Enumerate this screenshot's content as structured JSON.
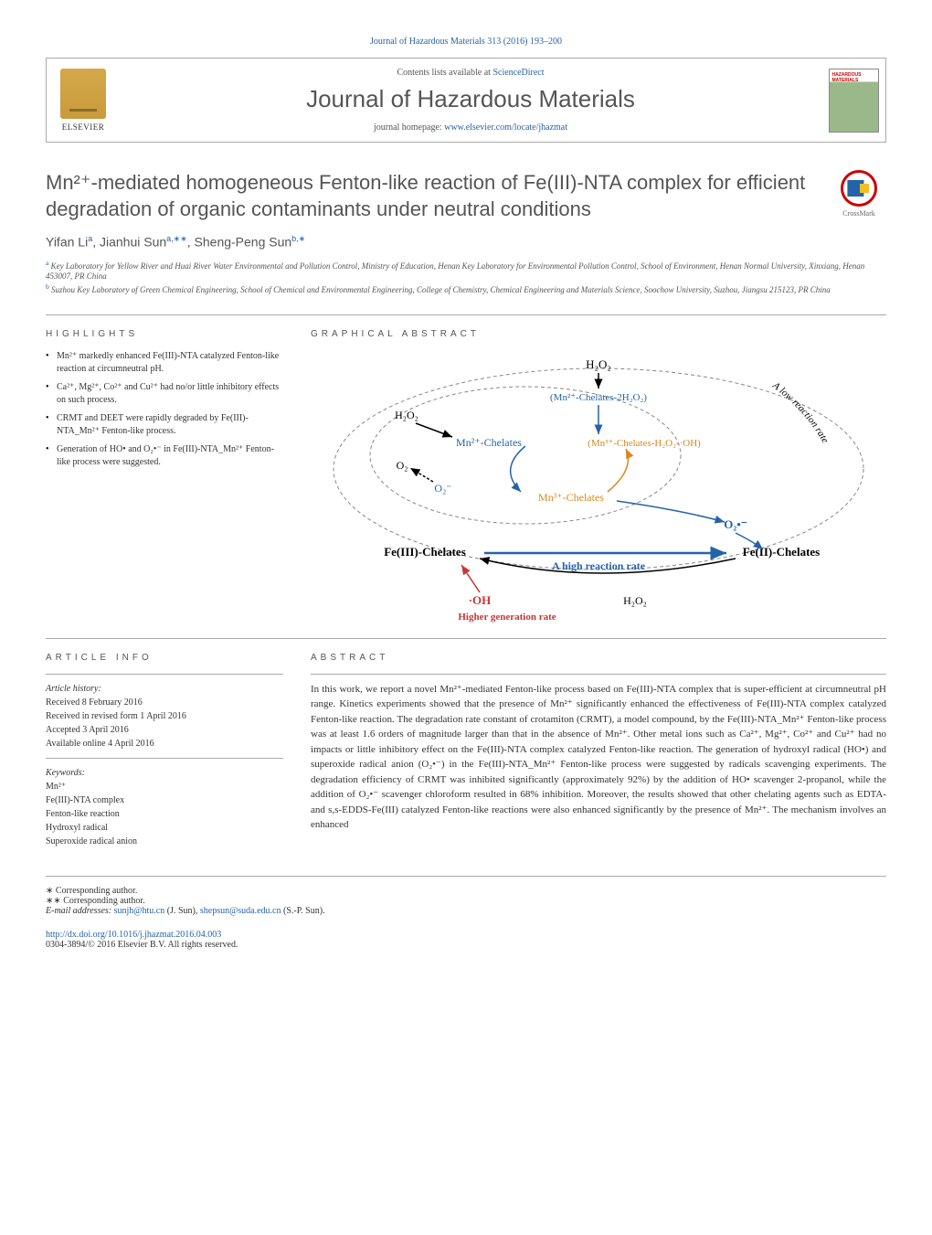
{
  "top_citation": "Journal of Hazardous Materials 313 (2016) 193–200",
  "header": {
    "elsevier": "ELSEVIER",
    "contents_prefix": "Contents lists available at ",
    "contents_link": "ScienceDirect",
    "journal_name": "Journal of Hazardous Materials",
    "homepage_prefix": "journal homepage: ",
    "homepage_link": "www.elsevier.com/locate/jhazmat",
    "cover_label": "HAZARDOUS MATERIALS"
  },
  "title": "Mn²⁺-mediated homogeneous Fenton-like reaction of Fe(III)-NTA complex for efficient degradation of organic contaminants under neutral conditions",
  "crossmark": "CrossMark",
  "authors_html": "Yifan Li<sup>a</sup>, Jianhui Sun<sup>a,∗∗</sup>, Sheng-Peng Sun<sup>b,∗</sup>",
  "affiliations": [
    {
      "sup": "a",
      "text": "Key Laboratory for Yellow River and Huai River Water Environmental and Pollution Control, Ministry of Education, Henan Key Laboratory for Environmental Pollution Control, School of Environment, Henan Normal University, Xinxiang, Henan 453007, PR China"
    },
    {
      "sup": "b",
      "text": "Suzhou Key Laboratory of Green Chemical Engineering, School of Chemical and Environmental Engineering, College of Chemistry, Chemical Engineering and Materials Science, Soochow University, Suzhou, Jiangsu 215123, PR China"
    }
  ],
  "highlights": {
    "heading": "HIGHLIGHTS",
    "items": [
      "Mn²⁺ markedly enhanced Fe(III)-NTA catalyzed Fenton-like reaction at circumneutral pH.",
      "Ca²⁺, Mg²⁺, Co²⁺ and Cu²⁺ had no/or little inhibitory effects on such process.",
      "CRMT and DEET were rapidly degraded by Fe(III)-NTA_Mn²⁺ Fenton-like process.",
      "Generation of HO• and O₂•⁻ in Fe(III)-NTA_Mn²⁺ Fenton-like process were suggested."
    ]
  },
  "graphical": {
    "heading": "GRAPHICAL ABSTRACT",
    "labels": {
      "h2o2_top": "H₂O₂",
      "mn2_chel_2h2o2": "(Mn²⁺-Chelates-2H₂O₂)",
      "h2o2_left": "H₂O₂",
      "mn2_chel": "Mn²⁺-Chelates",
      "mn3_chel_h2o2_oh": "(Mn³⁺-Chelates-H₂O₂-·OH)",
      "o2": "O₂",
      "o2_minus_left": "O₂⁻",
      "mn3_chel": "Mn³⁺-Chelates",
      "o2_minus_right": "O₂•⁻",
      "fe3_chel": "Fe(III)-Chelates",
      "fe2_chel": "Fe(II)-Chelates",
      "high_rate": "A high reaction rate",
      "oh_rad": "·OH",
      "h2o2_bottom": "H₂O₂",
      "higher_gen": "Higher generation rate",
      "low_rate": "A low reaction rate"
    },
    "colors": {
      "blue": "#2563a8",
      "orange": "#d98820",
      "red": "#c83737",
      "dashed": "#888",
      "black": "#000"
    }
  },
  "article_info": {
    "heading": "ARTICLE INFO",
    "history_label": "Article history:",
    "history": [
      "Received 8 February 2016",
      "Received in revised form 1 April 2016",
      "Accepted 3 April 2016",
      "Available online 4 April 2016"
    ],
    "keywords_label": "Keywords:",
    "keywords": [
      "Mn²⁺",
      "Fe(III)-NTA complex",
      "Fenton-like reaction",
      "Hydroxyl radical",
      "Superoxide radical anion"
    ]
  },
  "abstract": {
    "heading": "ABSTRACT",
    "text": "In this work, we report a novel Mn²⁺-mediated Fenton-like process based on Fe(III)-NTA complex that is super-efficient at circumneutral pH range. Kinetics experiments showed that the presence of Mn²⁺ significantly enhanced the effectiveness of Fe(III)-NTA complex catalyzed Fenton-like reaction. The degradation rate constant of crotamiton (CRMT), a model compound, by the Fe(III)-NTA_Mn²⁺ Fenton-like process was at least 1.6 orders of magnitude larger than that in the absence of Mn²⁺. Other metal ions such as Ca²⁺, Mg²⁺, Co²⁺ and Cu²⁺ had no impacts or little inhibitory effect on the Fe(III)-NTA complex catalyzed Fenton-like reaction. The generation of hydroxyl radical (HO•) and superoxide radical anion (O₂•⁻) in the Fe(III)-NTA_Mn²⁺ Fenton-like process were suggested by radicals scavenging experiments. The degradation efficiency of CRMT was inhibited significantly (approximately 92%) by the addition of HO• scavenger 2-propanol, while the addition of O₂•⁻ scavenger chloroform resulted in 68% inhibition. Moreover, the results showed that other chelating agents such as EDTA- and s,s-EDDS-Fe(III) catalyzed Fenton-like reactions were also enhanced significantly by the presence of Mn²⁺. The mechanism involves an enhanced"
  },
  "footer": {
    "corr1": "∗ Corresponding author.",
    "corr2": "∗∗ Corresponding author.",
    "email_label": "E-mail addresses: ",
    "email1": "sunjh@htu.cn",
    "email1_name": " (J. Sun), ",
    "email2": "shepsun@suda.edu.cn",
    "email2_name": " (S.-P. Sun).",
    "doi": "http://dx.doi.org/10.1016/j.jhazmat.2016.04.003",
    "copyright": "0304-3894/© 2016 Elsevier B.V. All rights reserved."
  }
}
